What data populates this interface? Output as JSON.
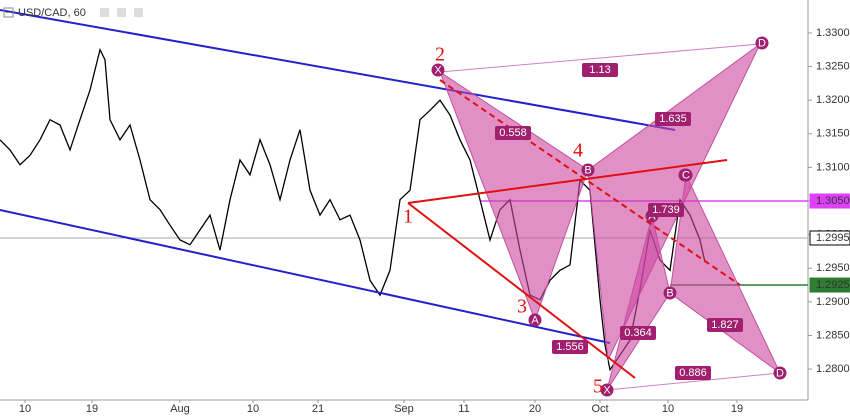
{
  "chart_data": {
    "type": "line",
    "title": "USD/CAD, 60",
    "color": "#000000",
    "x": [
      0,
      10,
      20,
      30,
      40,
      50,
      60,
      70,
      80,
      90,
      95,
      100,
      105,
      110,
      120,
      130,
      140,
      150,
      160,
      170,
      180,
      190,
      200,
      210,
      220,
      230,
      240,
      250,
      260,
      270,
      280,
      290,
      300,
      310,
      320,
      330,
      340,
      350,
      360,
      370,
      380,
      390,
      400,
      410,
      420,
      430,
      440,
      450,
      460,
      470,
      480,
      490,
      500,
      510,
      520,
      530,
      540,
      550,
      560,
      570,
      580,
      590,
      600,
      605,
      610,
      620,
      630,
      640,
      650,
      660,
      670,
      680,
      690,
      700,
      705
    ],
    "values": [
      1.3141,
      1.3126,
      1.3104,
      1.3118,
      1.3141,
      1.3171,
      1.3163,
      1.3126,
      1.3171,
      1.3215,
      1.3245,
      1.3275,
      1.326,
      1.3171,
      1.3141,
      1.3163,
      1.3111,
      1.3052,
      1.3037,
      1.3014,
      1.2992,
      1.2985,
      1.3007,
      1.3029,
      1.2977,
      1.3052,
      1.3111,
      1.3089,
      1.3141,
      1.3104,
      1.3052,
      1.3111,
      1.3156,
      1.3066,
      1.3029,
      1.3052,
      1.3022,
      1.3029,
      1.2992,
      1.2932,
      1.291,
      1.2947,
      1.3052,
      1.3066,
      1.3171,
      1.3185,
      1.32,
      1.3178,
      1.3141,
      1.3111,
      1.3052,
      1.2992,
      1.3037,
      1.3052,
      1.2977,
      1.291,
      1.2903,
      1.2932,
      1.2947,
      1.2955,
      1.3081,
      1.3066,
      1.2903,
      1.2836,
      1.2799,
      1.2821,
      1.2843,
      1.2918,
      1.3007,
      1.2962,
      1.2947,
      1.3052,
      1.3029,
      1.2992,
      1.2959
    ],
    "xlim": [
      0,
      808
    ],
    "xticks": [
      {
        "value": 25,
        "label": "10"
      },
      {
        "value": 92,
        "label": "19"
      },
      {
        "value": 180,
        "label": "Aug"
      },
      {
        "value": 253,
        "label": "10"
      },
      {
        "value": 318,
        "label": "21"
      },
      {
        "value": 404,
        "label": "Sep"
      },
      {
        "value": 464,
        "label": "11"
      },
      {
        "value": 535,
        "label": "20"
      },
      {
        "value": 600,
        "label": "Oct"
      },
      {
        "value": 668,
        "label": "10"
      },
      {
        "value": 737,
        "label": "19"
      }
    ],
    "ylim": [
      1.2754,
      1.3349
    ],
    "yticks": [
      {
        "value": 1.28,
        "label": "1.2800"
      },
      {
        "value": 1.285,
        "label": "1.2850"
      },
      {
        "value": 1.29,
        "label": "1.2900"
      },
      {
        "value": 1.295,
        "label": "1.2950"
      },
      {
        "value": 1.3,
        "label": "1.3000"
      },
      {
        "value": 1.305,
        "label": "1.3050"
      },
      {
        "value": 1.31,
        "label": "1.3100"
      },
      {
        "value": 1.315,
        "label": "1.3150"
      },
      {
        "value": 1.32,
        "label": "1.3200"
      },
      {
        "value": 1.325,
        "label": "1.3250"
      },
      {
        "value": 1.33,
        "label": "1.3300"
      }
    ],
    "grid": false,
    "price_labels": [
      {
        "value": 1.305,
        "label": "1.3050",
        "color": "#e040fb"
      },
      {
        "value": 1.2995,
        "label": "1.2995",
        "color": "#000000"
      },
      {
        "value": 1.2925,
        "label": "1.2925",
        "color": "#2e7d32"
      }
    ],
    "pattern_points": [
      "X",
      "A",
      "B",
      "C",
      "D",
      "X",
      "A",
      "B",
      "C",
      "D"
    ],
    "ratios": [
      "1.13",
      "0.558",
      "1.635",
      "1.739",
      "0.364",
      "1.827",
      "1.556",
      "0.886"
    ],
    "wave_labels": [
      "1",
      "2",
      "3",
      "4",
      "5"
    ]
  }
}
